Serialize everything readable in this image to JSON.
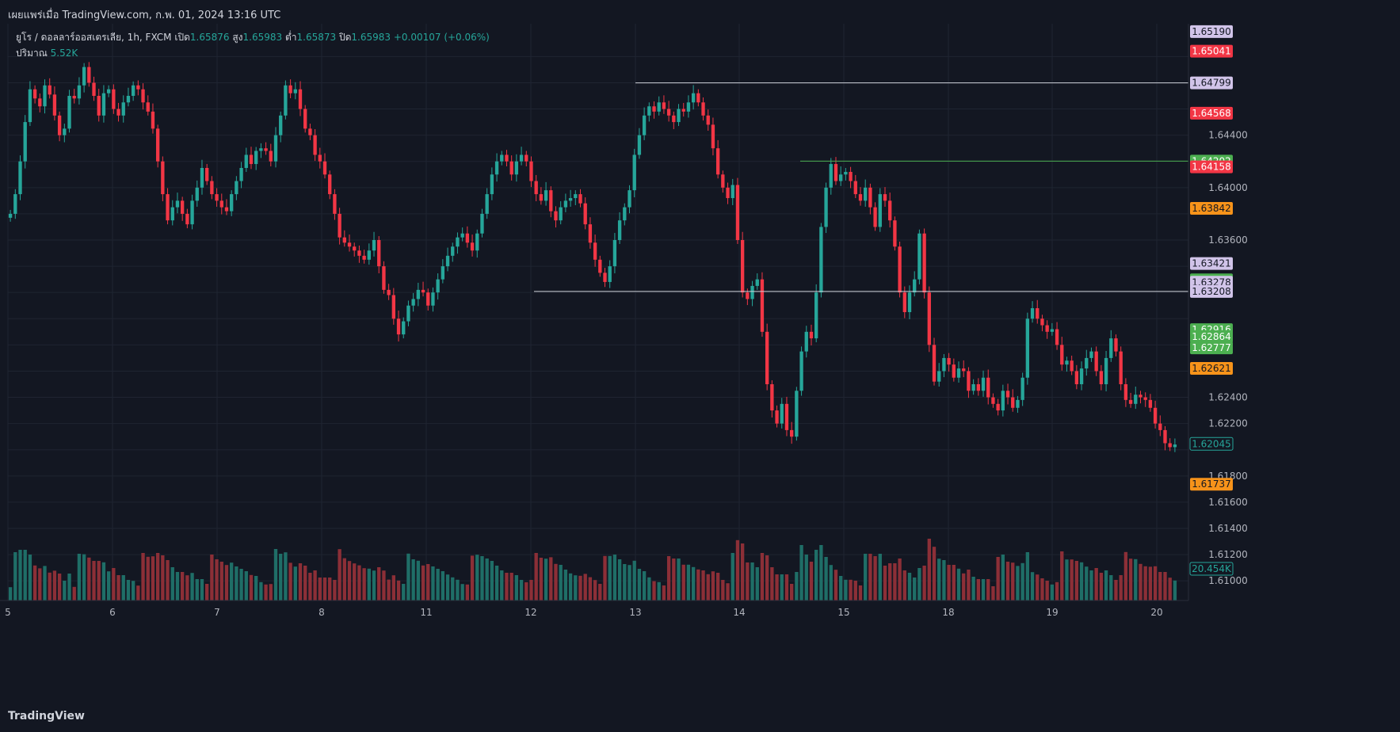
{
  "header": {
    "published": "เผยแพร่เมื่อ TradingView.com, ก.พ. 01, 2024 13:16 UTC"
  },
  "legend": {
    "symbol": "ยูโร / ดอลลาร์ออสเตรเลีย, 1h, FXCM",
    "open_label": "เปิด",
    "open": "1.65876",
    "high_label": "สูง",
    "high": "1.65983",
    "low_label": "ต่ำ",
    "low": "1.65873",
    "close_label": "ปิด",
    "close": "1.65983",
    "change": "+0.00107 (+0.06%)",
    "volume_label": "ปริมาณ",
    "volume": "5.52K"
  },
  "brand": "TradingView",
  "colors": {
    "background": "#131722",
    "up": "#26a69a",
    "down": "#f23645",
    "up_volume": "#1f6e67",
    "down_volume": "#8c2f37",
    "grid": "#1f2431",
    "orange": "#f7931a",
    "green_badge": "#4caf50",
    "lavender": "#d1c4e9"
  },
  "chart_data": {
    "type": "candlestick",
    "title": "ยูโร / ดอลลาร์ออสเตรเลีย, 1h, FXCM",
    "ylim": [
      1.6085,
      1.6525
    ],
    "y_ticks": [
      "1.64400",
      "1.64000",
      "1.63600",
      "1.62400",
      "1.62200",
      "1.61800",
      "1.61600",
      "1.61400",
      "1.61200",
      "1.61000"
    ],
    "x_ticks": [
      "5",
      "6",
      "7",
      "8",
      "11",
      "12",
      "13",
      "14",
      "15",
      "18",
      "19",
      "20"
    ],
    "closes": [
      1.638,
      1.6395,
      1.642,
      1.645,
      1.6475,
      1.6468,
      1.6462,
      1.6478,
      1.6471,
      1.6455,
      1.644,
      1.6445,
      1.647,
      1.6468,
      1.6478,
      1.6492,
      1.648,
      1.647,
      1.6455,
      1.6472,
      1.6475,
      1.646,
      1.6455,
      1.6465,
      1.647,
      1.6478,
      1.6475,
      1.6465,
      1.6458,
      1.6445,
      1.642,
      1.6395,
      1.6375,
      1.6385,
      1.639,
      1.638,
      1.6372,
      1.639,
      1.64,
      1.6415,
      1.6405,
      1.6395,
      1.639,
      1.6385,
      1.6382,
      1.6395,
      1.6405,
      1.6415,
      1.6425,
      1.6418,
      1.6428,
      1.643,
      1.6428,
      1.642,
      1.644,
      1.6455,
      1.6478,
      1.6472,
      1.6475,
      1.646,
      1.6445,
      1.644,
      1.6425,
      1.642,
      1.641,
      1.6395,
      1.638,
      1.6362,
      1.6358,
      1.6355,
      1.6352,
      1.6348,
      1.6345,
      1.6352,
      1.636,
      1.634,
      1.6322,
      1.6318,
      1.63,
      1.6288,
      1.6298,
      1.631,
      1.6315,
      1.6322,
      1.632,
      1.631,
      1.632,
      1.633,
      1.634,
      1.6348,
      1.6355,
      1.6362,
      1.6365,
      1.6358,
      1.6352,
      1.6365,
      1.638,
      1.6395,
      1.641,
      1.642,
      1.6425,
      1.642,
      1.641,
      1.642,
      1.6425,
      1.642,
      1.6405,
      1.6395,
      1.639,
      1.6398,
      1.6382,
      1.6375,
      1.6385,
      1.639,
      1.6392,
      1.6395,
      1.6388,
      1.6372,
      1.6358,
      1.6345,
      1.6335,
      1.6328,
      1.634,
      1.636,
      1.6375,
      1.6385,
      1.6398,
      1.6425,
      1.644,
      1.6455,
      1.6462,
      1.6458,
      1.6465,
      1.646,
      1.6455,
      1.645,
      1.646,
      1.6458,
      1.6465,
      1.6472,
      1.6465,
      1.6455,
      1.6448,
      1.643,
      1.641,
      1.64,
      1.6392,
      1.6402,
      1.636,
      1.632,
      1.6315,
      1.6325,
      1.633,
      1.629,
      1.625,
      1.623,
      1.622,
      1.6235,
      1.6215,
      1.621,
      1.6245,
      1.6275,
      1.629,
      1.6285,
      1.632,
      1.637,
      1.64,
      1.6418,
      1.6405,
      1.641,
      1.6412,
      1.6405,
      1.6395,
      1.639,
      1.64,
      1.6385,
      1.637,
      1.6395,
      1.639,
      1.6375,
      1.6355,
      1.632,
      1.6305,
      1.632,
      1.633,
      1.6365,
      1.632,
      1.628,
      1.6252,
      1.626,
      1.627,
      1.6265,
      1.6255,
      1.6262,
      1.626,
      1.6245,
      1.625,
      1.6245,
      1.6255,
      1.624,
      1.6235,
      1.623,
      1.6245,
      1.624,
      1.6232,
      1.6238,
      1.6255,
      1.63,
      1.6308,
      1.63,
      1.6295,
      1.629,
      1.6292,
      1.628,
      1.6265,
      1.6268,
      1.626,
      1.625,
      1.6262,
      1.627,
      1.6275,
      1.626,
      1.625,
      1.627,
      1.6285,
      1.6275,
      1.625,
      1.6238,
      1.6235,
      1.6242,
      1.624,
      1.6238,
      1.6232,
      1.622,
      1.6215,
      1.6205,
      1.6202,
      1.6204
    ]
  }
}
